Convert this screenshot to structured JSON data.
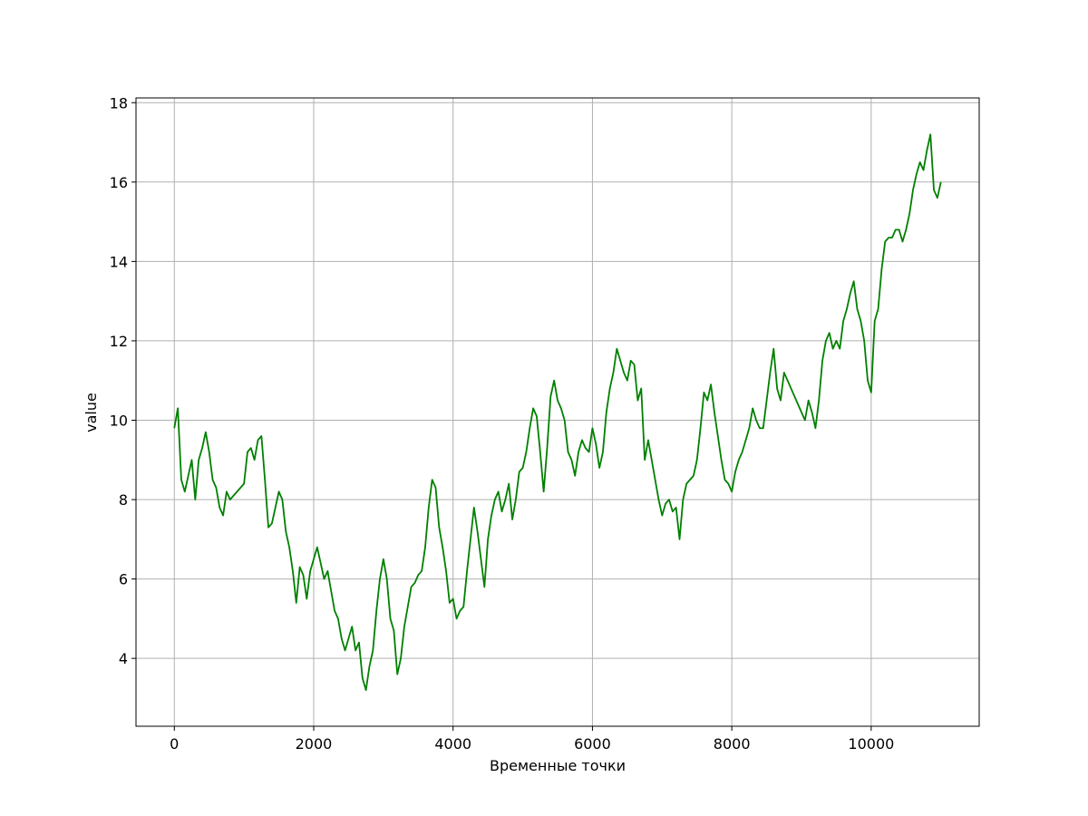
{
  "chart_data": {
    "type": "line",
    "x_label": "Временные точки",
    "y_label": "value",
    "x": [
      0,
      50,
      100,
      150,
      200,
      250,
      300,
      350,
      400,
      450,
      500,
      550,
      600,
      650,
      700,
      750,
      800,
      850,
      900,
      950,
      1000,
      1050,
      1100,
      1150,
      1200,
      1250,
      1300,
      1350,
      1400,
      1450,
      1500,
      1550,
      1600,
      1650,
      1700,
      1750,
      1800,
      1850,
      1900,
      1950,
      2000,
      2050,
      2100,
      2150,
      2200,
      2250,
      2300,
      2350,
      2400,
      2450,
      2500,
      2550,
      2600,
      2650,
      2700,
      2750,
      2800,
      2850,
      2900,
      2950,
      3000,
      3050,
      3100,
      3150,
      3200,
      3250,
      3300,
      3350,
      3400,
      3450,
      3500,
      3550,
      3600,
      3650,
      3700,
      3750,
      3800,
      3850,
      3900,
      3950,
      4000,
      4050,
      4100,
      4150,
      4200,
      4250,
      4300,
      4350,
      4400,
      4450,
      4500,
      4550,
      4600,
      4650,
      4700,
      4750,
      4800,
      4850,
      4900,
      4950,
      5000,
      5050,
      5100,
      5150,
      5200,
      5250,
      5300,
      5350,
      5400,
      5450,
      5500,
      5550,
      5600,
      5650,
      5700,
      5750,
      5800,
      5850,
      5900,
      5950,
      6000,
      6050,
      6100,
      6150,
      6200,
      6250,
      6300,
      6350,
      6400,
      6450,
      6500,
      6550,
      6600,
      6650,
      6700,
      6750,
      6800,
      6850,
      6900,
      6950,
      7000,
      7050,
      7100,
      7150,
      7200,
      7250,
      7300,
      7350,
      7400,
      7450,
      7500,
      7550,
      7600,
      7650,
      7700,
      7750,
      7800,
      7850,
      7900,
      7950,
      8000,
      8050,
      8100,
      8150,
      8200,
      8250,
      8300,
      8350,
      8400,
      8450,
      8500,
      8550,
      8600,
      8650,
      8700,
      8750,
      8800,
      8850,
      8900,
      8950,
      9000,
      9050,
      9100,
      9150,
      9200,
      9250,
      9300,
      9350,
      9400,
      9450,
      9500,
      9550,
      9600,
      9650,
      9700,
      9750,
      9800,
      9850,
      9900,
      9950,
      10000,
      10050,
      10100,
      10150,
      10200,
      10250,
      10300,
      10350,
      10400,
      10450,
      10500,
      10550,
      10600,
      10650,
      10700,
      10750,
      10800,
      10850,
      10900,
      10950,
      11000
    ],
    "series": [
      {
        "color": "#008000",
        "values": [
          9.8,
          10.3,
          8.5,
          8.2,
          8.6,
          9.0,
          8.0,
          9.0,
          9.3,
          9.7,
          9.2,
          8.5,
          8.3,
          7.8,
          7.6,
          8.2,
          8.0,
          8.1,
          8.2,
          8.3,
          8.4,
          9.2,
          9.3,
          9.0,
          9.5,
          9.6,
          8.5,
          7.3,
          7.4,
          7.8,
          8.2,
          8.0,
          7.2,
          6.8,
          6.2,
          5.4,
          6.3,
          6.1,
          5.5,
          6.2,
          6.5,
          6.8,
          6.4,
          6.0,
          6.2,
          5.7,
          5.2,
          5.0,
          4.5,
          4.2,
          4.5,
          4.8,
          4.2,
          4.4,
          3.5,
          3.2,
          3.8,
          4.2,
          5.2,
          6.0,
          6.5,
          6.0,
          5.0,
          4.7,
          3.6,
          4.0,
          4.8,
          5.3,
          5.8,
          5.9,
          6.1,
          6.2,
          6.8,
          7.8,
          8.5,
          8.3,
          7.3,
          6.8,
          6.2,
          5.4,
          5.5,
          5.0,
          5.2,
          5.3,
          6.2,
          7.0,
          7.8,
          7.2,
          6.5,
          5.8,
          7.0,
          7.6,
          8.0,
          8.2,
          7.7,
          8.0,
          8.4,
          7.5,
          8.0,
          8.7,
          8.8,
          9.2,
          9.8,
          10.3,
          10.1,
          9.2,
          8.2,
          9.3,
          10.6,
          11.0,
          10.5,
          10.3,
          10.0,
          9.2,
          9.0,
          8.6,
          9.2,
          9.5,
          9.3,
          9.2,
          9.8,
          9.4,
          8.8,
          9.2,
          10.2,
          10.8,
          11.2,
          11.8,
          11.5,
          11.2,
          11.0,
          11.5,
          11.4,
          10.5,
          10.8,
          9.0,
          9.5,
          9.0,
          8.5,
          8.0,
          7.6,
          7.9,
          8.0,
          7.7,
          7.8,
          7.0,
          8.0,
          8.4,
          8.5,
          8.6,
          9.0,
          9.8,
          10.7,
          10.5,
          10.9,
          10.2,
          9.6,
          9.0,
          8.5,
          8.4,
          8.2,
          8.7,
          9.0,
          9.2,
          9.5,
          9.8,
          10.3,
          10.0,
          9.8,
          9.8,
          10.5,
          11.2,
          11.8,
          10.8,
          10.5,
          11.2,
          11.0,
          10.8,
          10.6,
          10.4,
          10.2,
          10.0,
          10.5,
          10.2,
          9.8,
          10.5,
          11.5,
          12.0,
          12.2,
          11.8,
          12.0,
          11.8,
          12.5,
          12.8,
          13.2,
          13.5,
          12.8,
          12.5,
          12.0,
          11.0,
          10.7,
          12.5,
          12.8,
          13.8,
          14.5,
          14.6,
          14.6,
          14.8,
          14.8,
          14.5,
          14.8,
          15.2,
          15.8,
          16.2,
          16.5,
          16.3,
          16.8,
          17.2,
          15.8,
          15.6,
          16.0
        ]
      }
    ],
    "xlim": [
      -550,
      11550
    ],
    "ylim": [
      2.29,
      18.12
    ],
    "xticks": [
      0,
      2000,
      4000,
      6000,
      8000,
      10000
    ],
    "yticks": [
      4,
      6,
      8,
      10,
      12,
      14,
      16,
      18
    ],
    "grid": true
  }
}
